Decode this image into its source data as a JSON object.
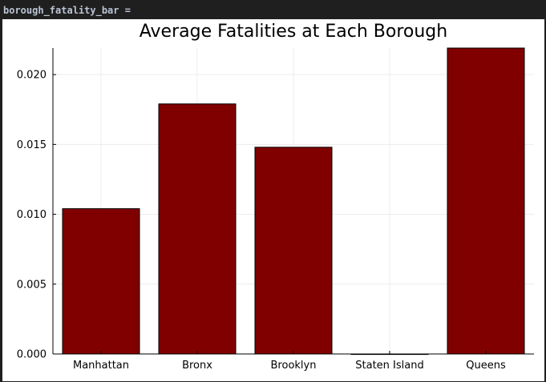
{
  "cell": {
    "label": "borough_fatality_bar ="
  },
  "colors": {
    "bar_fill": "#800000",
    "bar_stroke": "#000000",
    "grid": "#ececec",
    "background": "#ffffff"
  },
  "chart_data": {
    "type": "bar",
    "title": "Average Fatalities at Each Borough",
    "xlabel": "",
    "ylabel": "",
    "categories": [
      "Manhattan",
      "Bronx",
      "Brooklyn",
      "Staten Island",
      "Queens"
    ],
    "values": [
      0.0104,
      0.0179,
      0.0148,
      0.0,
      0.0219
    ],
    "ylim": [
      0,
      0.0219
    ],
    "yticks": [
      0.0,
      0.005,
      0.01,
      0.015,
      0.02
    ],
    "ytick_labels": [
      "0.000",
      "0.005",
      "0.010",
      "0.015",
      "0.020"
    ],
    "grid": true,
    "legend": "none"
  }
}
